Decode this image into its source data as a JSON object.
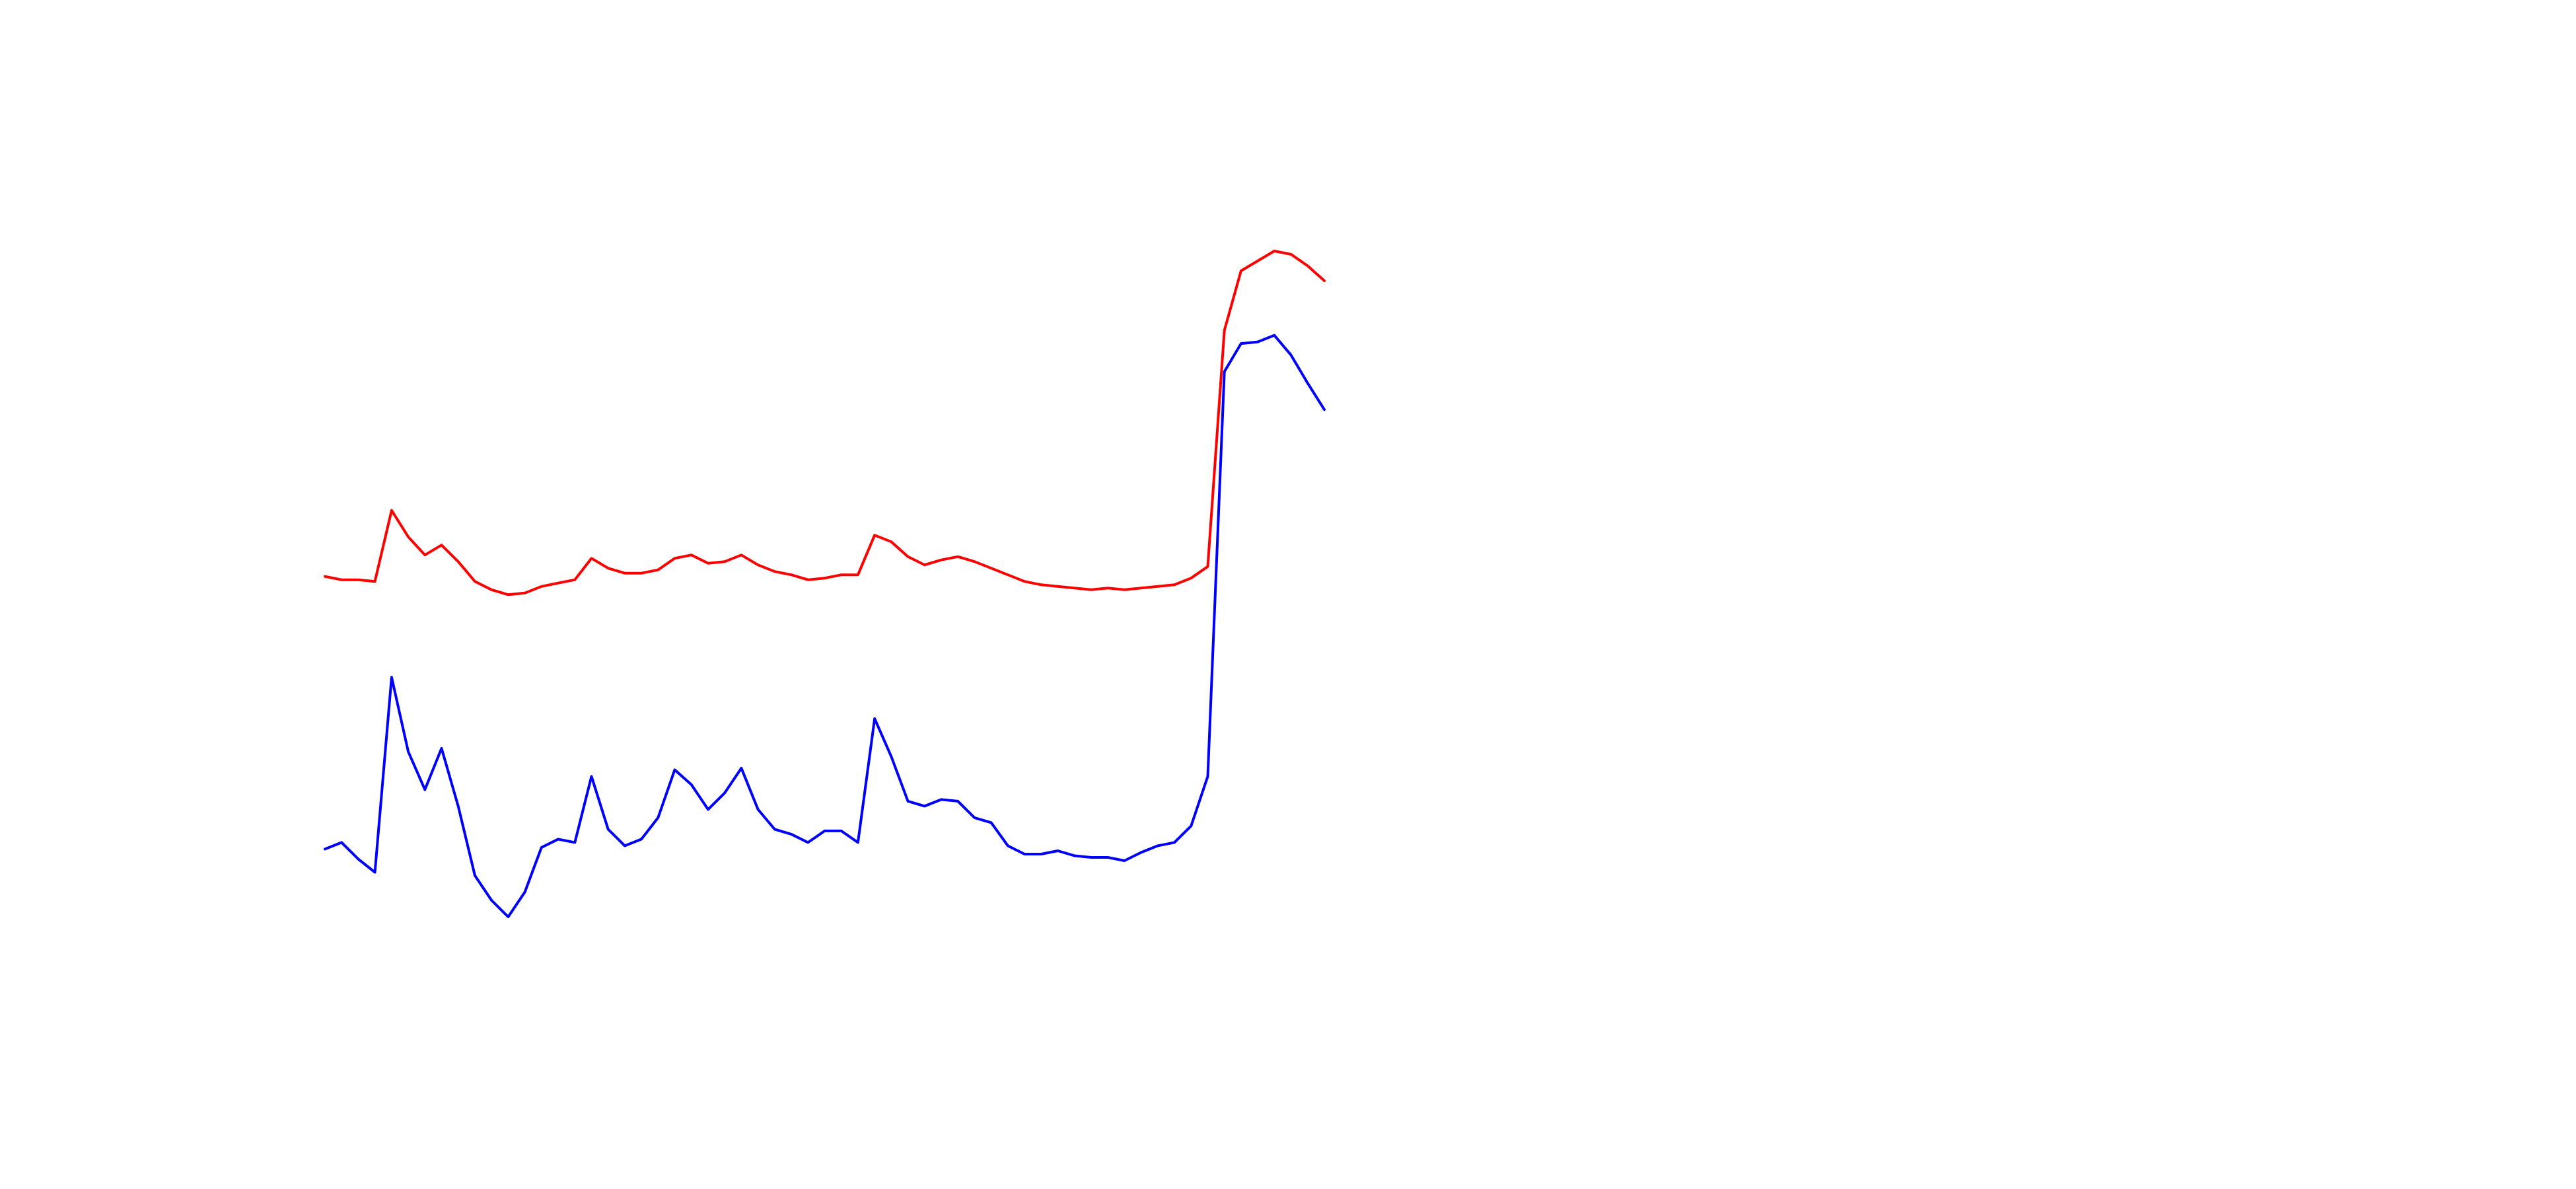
{
  "chart_data": {
    "type": "line",
    "series": [
      {
        "color": "#ff0000",
        "values": [
          371,
          369,
          369,
          368,
          411,
          395,
          384,
          390,
          380,
          368,
          363,
          360,
          361,
          365,
          367,
          369,
          382,
          376,
          373,
          373,
          375,
          382,
          384,
          379,
          380,
          384,
          378,
          374,
          372,
          369,
          370,
          372,
          372,
          396,
          392,
          383,
          378,
          381,
          383,
          380,
          376,
          372,
          368,
          366,
          365,
          364,
          363,
          364,
          363,
          364,
          365,
          366,
          370,
          377,
          520,
          556,
          562,
          568,
          566,
          559,
          550
        ]
      },
      {
        "color": "#0000ff",
        "values": [
          206,
          210,
          200,
          192,
          310,
          265,
          242,
          267,
          232,
          190,
          175,
          165,
          180,
          207,
          212,
          210,
          250,
          218,
          208,
          212,
          225,
          254,
          245,
          230,
          240,
          255,
          230,
          218,
          215,
          210,
          217,
          217,
          210,
          285,
          262,
          235,
          232,
          236,
          235,
          225,
          222,
          208,
          203,
          203,
          205,
          202,
          201,
          201,
          199,
          204,
          208,
          210,
          220,
          250,
          495,
          512,
          513,
          517,
          505,
          488,
          472
        ]
      }
    ]
  }
}
